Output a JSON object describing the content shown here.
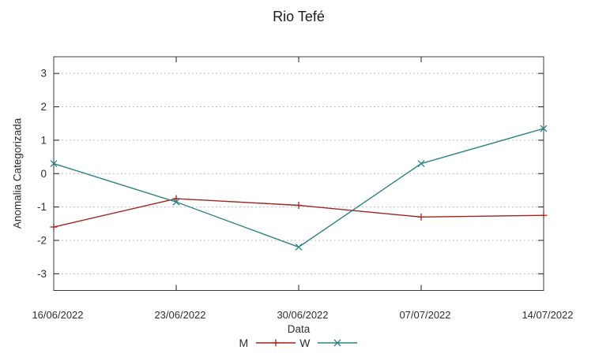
{
  "chart_data": {
    "type": "line",
    "title": "Rio Tefé",
    "xlabel": "Data",
    "ylabel": "Anomalia Categorizada",
    "categories": [
      "16/06/2022",
      "23/06/2022",
      "30/06/2022",
      "07/07/2022",
      "14/07/2022"
    ],
    "yticks": [
      "3",
      "2",
      "1",
      "0",
      "-1",
      "-2",
      "-3"
    ],
    "ytick_values": [
      3,
      2,
      1,
      0,
      -1,
      -2,
      -3
    ],
    "ylim": [
      -3.5,
      3.5
    ],
    "grid": true,
    "legend_position": "bottom-center",
    "series": [
      {
        "name": "M",
        "marker": "plus",
        "color": "#a3231e",
        "values": [
          -1.6,
          -0.75,
          -0.95,
          -1.3,
          -1.25
        ]
      },
      {
        "name": "W",
        "marker": "cross",
        "color": "#2b8583",
        "values": [
          0.3,
          -0.85,
          -2.2,
          0.3,
          1.35
        ]
      }
    ]
  },
  "colors": {
    "background": "#ffffff",
    "grid": "#b8b8b8",
    "border": "#3c3c3c",
    "tick": "#1a1a1a",
    "text": "#2e2e2e"
  }
}
